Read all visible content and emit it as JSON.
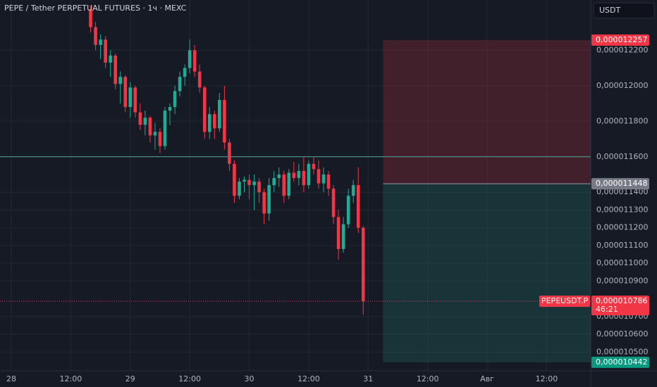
{
  "chart_data": {
    "type": "candlestick",
    "title": "PEPE / Tether PERPETUAL FUTURES · 1ч · MEXC",
    "currency": "USDT",
    "up_color": "#22ab94",
    "down_color": "#f23645",
    "x": [
      16,
      17,
      18,
      19,
      20,
      21,
      22,
      23,
      24,
      25,
      26,
      27,
      28,
      29,
      30,
      31,
      32,
      33,
      34,
      35,
      36,
      37,
      38,
      39,
      40,
      41,
      42,
      43,
      44,
      45,
      46,
      47,
      48,
      49,
      50,
      51,
      52,
      53,
      54,
      55,
      56,
      57,
      58,
      59,
      60,
      61,
      62,
      63,
      64,
      65,
      66,
      67,
      68,
      69,
      70,
      71
    ],
    "open": [
      1.243e-05,
      1.233e-05,
      1.223e-05,
      1.226e-05,
      1.213e-05,
      1.217e-05,
      1.201e-05,
      1.205e-05,
      1.188e-05,
      1.199e-05,
      1.185e-05,
      1.178e-05,
      1.182e-05,
      1.172e-05,
      1.174e-05,
      1.166e-05,
      1.186e-05,
      1.188e-05,
      1.197e-05,
      1.205e-05,
      1.21e-05,
      1.22e-05,
      1.208e-05,
      1.199e-05,
      1.174e-05,
      1.184e-05,
      1.176e-05,
      1.192e-05,
      1.168e-05,
      1.156e-05,
      1.138e-05,
      1.146e-05,
      1.147e-05,
      1.144e-05,
      1.146e-05,
      1.14e-05,
      1.128e-05,
      1.144e-05,
      1.148e-05,
      1.15e-05,
      1.138e-05,
      1.151e-05,
      1.148e-05,
      1.152e-05,
      1.144e-05,
      1.156e-05,
      1.153e-05,
      1.145e-05,
      1.15e-05,
      1.142e-05,
      1.126e-05,
      1.108e-05,
      1.122e-05,
      1.138e-05,
      1.144e-05,
      1.12e-05
    ],
    "high": [
      1.245e-05,
      1.236e-05,
      1.229e-05,
      1.228e-05,
      1.22e-05,
      1.218e-05,
      1.208e-05,
      1.206e-05,
      1.202e-05,
      1.2e-05,
      1.19e-05,
      1.186e-05,
      1.183e-05,
      1.179e-05,
      1.176e-05,
      1.188e-05,
      1.19e-05,
      1.2e-05,
      1.208e-05,
      1.212e-05,
      1.226e-05,
      1.223e-05,
      1.212e-05,
      1.2e-05,
      1.188e-05,
      1.186e-05,
      1.196e-05,
      1.2e-05,
      1.17e-05,
      1.158e-05,
      1.148e-05,
      1.149e-05,
      1.15e-05,
      1.15e-05,
      1.148e-05,
      1.142e-05,
      1.148e-05,
      1.152e-05,
      1.154e-05,
      1.152e-05,
      1.153e-05,
      1.157e-05,
      1.156e-05,
      1.16e-05,
      1.158e-05,
      1.16e-05,
      1.158e-05,
      1.154e-05,
      1.152e-05,
      1.144e-05,
      1.13e-05,
      1.126e-05,
      1.142e-05,
      1.147e-05,
      1.154e-05,
      1.121e-05
    ],
    "low": [
      1.23e-05,
      1.22e-05,
      1.215e-05,
      1.21e-05,
      1.205e-05,
      1.198e-05,
      1.19e-05,
      1.185e-05,
      1.182e-05,
      1.182e-05,
      1.175e-05,
      1.172e-05,
      1.168e-05,
      1.164e-05,
      1.162e-05,
      1.164e-05,
      1.178e-05,
      1.184e-05,
      1.194e-05,
      1.2e-05,
      1.207e-05,
      1.205e-05,
      1.196e-05,
      1.17e-05,
      1.17e-05,
      1.17e-05,
      1.174e-05,
      1.164e-05,
      1.152e-05,
      1.134e-05,
      1.136e-05,
      1.14e-05,
      1.136e-05,
      1.13e-05,
      1.134e-05,
      1.122e-05,
      1.124e-05,
      1.14e-05,
      1.143e-05,
      1.134e-05,
      1.136e-05,
      1.146e-05,
      1.144e-05,
      1.14e-05,
      1.142e-05,
      1.15e-05,
      1.142e-05,
      1.14e-05,
      1.138e-05,
      1.122e-05,
      1.102e-05,
      1.106e-05,
      1.12e-05,
      1.134e-05,
      1.117e-05,
      1.071e-05
    ],
    "close": [
      1.233e-05,
      1.223e-05,
      1.226e-05,
      1.213e-05,
      1.217e-05,
      1.201e-05,
      1.205e-05,
      1.188e-05,
      1.199e-05,
      1.185e-05,
      1.178e-05,
      1.182e-05,
      1.172e-05,
      1.174e-05,
      1.166e-05,
      1.186e-05,
      1.188e-05,
      1.197e-05,
      1.205e-05,
      1.21e-05,
      1.22e-05,
      1.208e-05,
      1.199e-05,
      1.174e-05,
      1.184e-05,
      1.176e-05,
      1.192e-05,
      1.168e-05,
      1.156e-05,
      1.138e-05,
      1.146e-05,
      1.147e-05,
      1.144e-05,
      1.146e-05,
      1.14e-05,
      1.128e-05,
      1.144e-05,
      1.148e-05,
      1.15e-05,
      1.138e-05,
      1.151e-05,
      1.148e-05,
      1.152e-05,
      1.144e-05,
      1.156e-05,
      1.153e-05,
      1.145e-05,
      1.15e-05,
      1.142e-05,
      1.126e-05,
      1.108e-05,
      1.122e-05,
      1.138e-05,
      1.144e-05,
      1.12e-05,
      1.0786e-05
    ],
    "xlim": [
      -2.28,
      116.9
    ],
    "xticks": [
      {
        "value": 0,
        "label": "28"
      },
      {
        "value": 12,
        "label": "12:00"
      },
      {
        "value": 24,
        "label": "29"
      },
      {
        "value": 36,
        "label": "12:00"
      },
      {
        "value": 48,
        "label": "30"
      },
      {
        "value": 60,
        "label": "12:00"
      },
      {
        "value": 72,
        "label": "31"
      },
      {
        "value": 84,
        "label": "12:00"
      },
      {
        "value": 96,
        "label": "Авг"
      },
      {
        "value": 108,
        "label": "12:00"
      }
    ],
    "ylim": [
      1.0394e-05,
      1.2483e-05
    ],
    "yticks": [
      {
        "value": 1.22e-05,
        "label": "0,000012200"
      },
      {
        "value": 1.2e-05,
        "label": "0,000012000"
      },
      {
        "value": 1.18e-05,
        "label": "0,000011800"
      },
      {
        "value": 1.16e-05,
        "label": "0,000011600"
      },
      {
        "value": 1.14e-05,
        "label": "0,000011400"
      },
      {
        "value": 1.13e-05,
        "label": "0,000011300"
      },
      {
        "value": 1.12e-05,
        "label": "0,000011200"
      },
      {
        "value": 1.11e-05,
        "label": "0,000011100"
      },
      {
        "value": 1.1e-05,
        "label": "0,000011000"
      },
      {
        "value": 1.09e-05,
        "label": "0,000010900"
      },
      {
        "value": 1.07e-05,
        "label": "0,000010700"
      },
      {
        "value": 1.06e-05,
        "label": "0,000010600"
      },
      {
        "value": 1.05e-05,
        "label": "0,000010500"
      }
    ],
    "grid": true,
    "level_line": 1.16e-05,
    "position": {
      "x_start": 75,
      "stop": {
        "value": 1.2257e-05,
        "label": "0,000012257"
      },
      "entry": {
        "value": 1.1448e-05,
        "label": "0,000011448"
      },
      "target": {
        "value": 1.0442e-05,
        "label": "0,000010442"
      }
    },
    "last_price": {
      "value": 1.0786e-05,
      "label": "0,000010786",
      "symbol": "PEPEUSDT.P",
      "countdown": "46:21"
    }
  }
}
